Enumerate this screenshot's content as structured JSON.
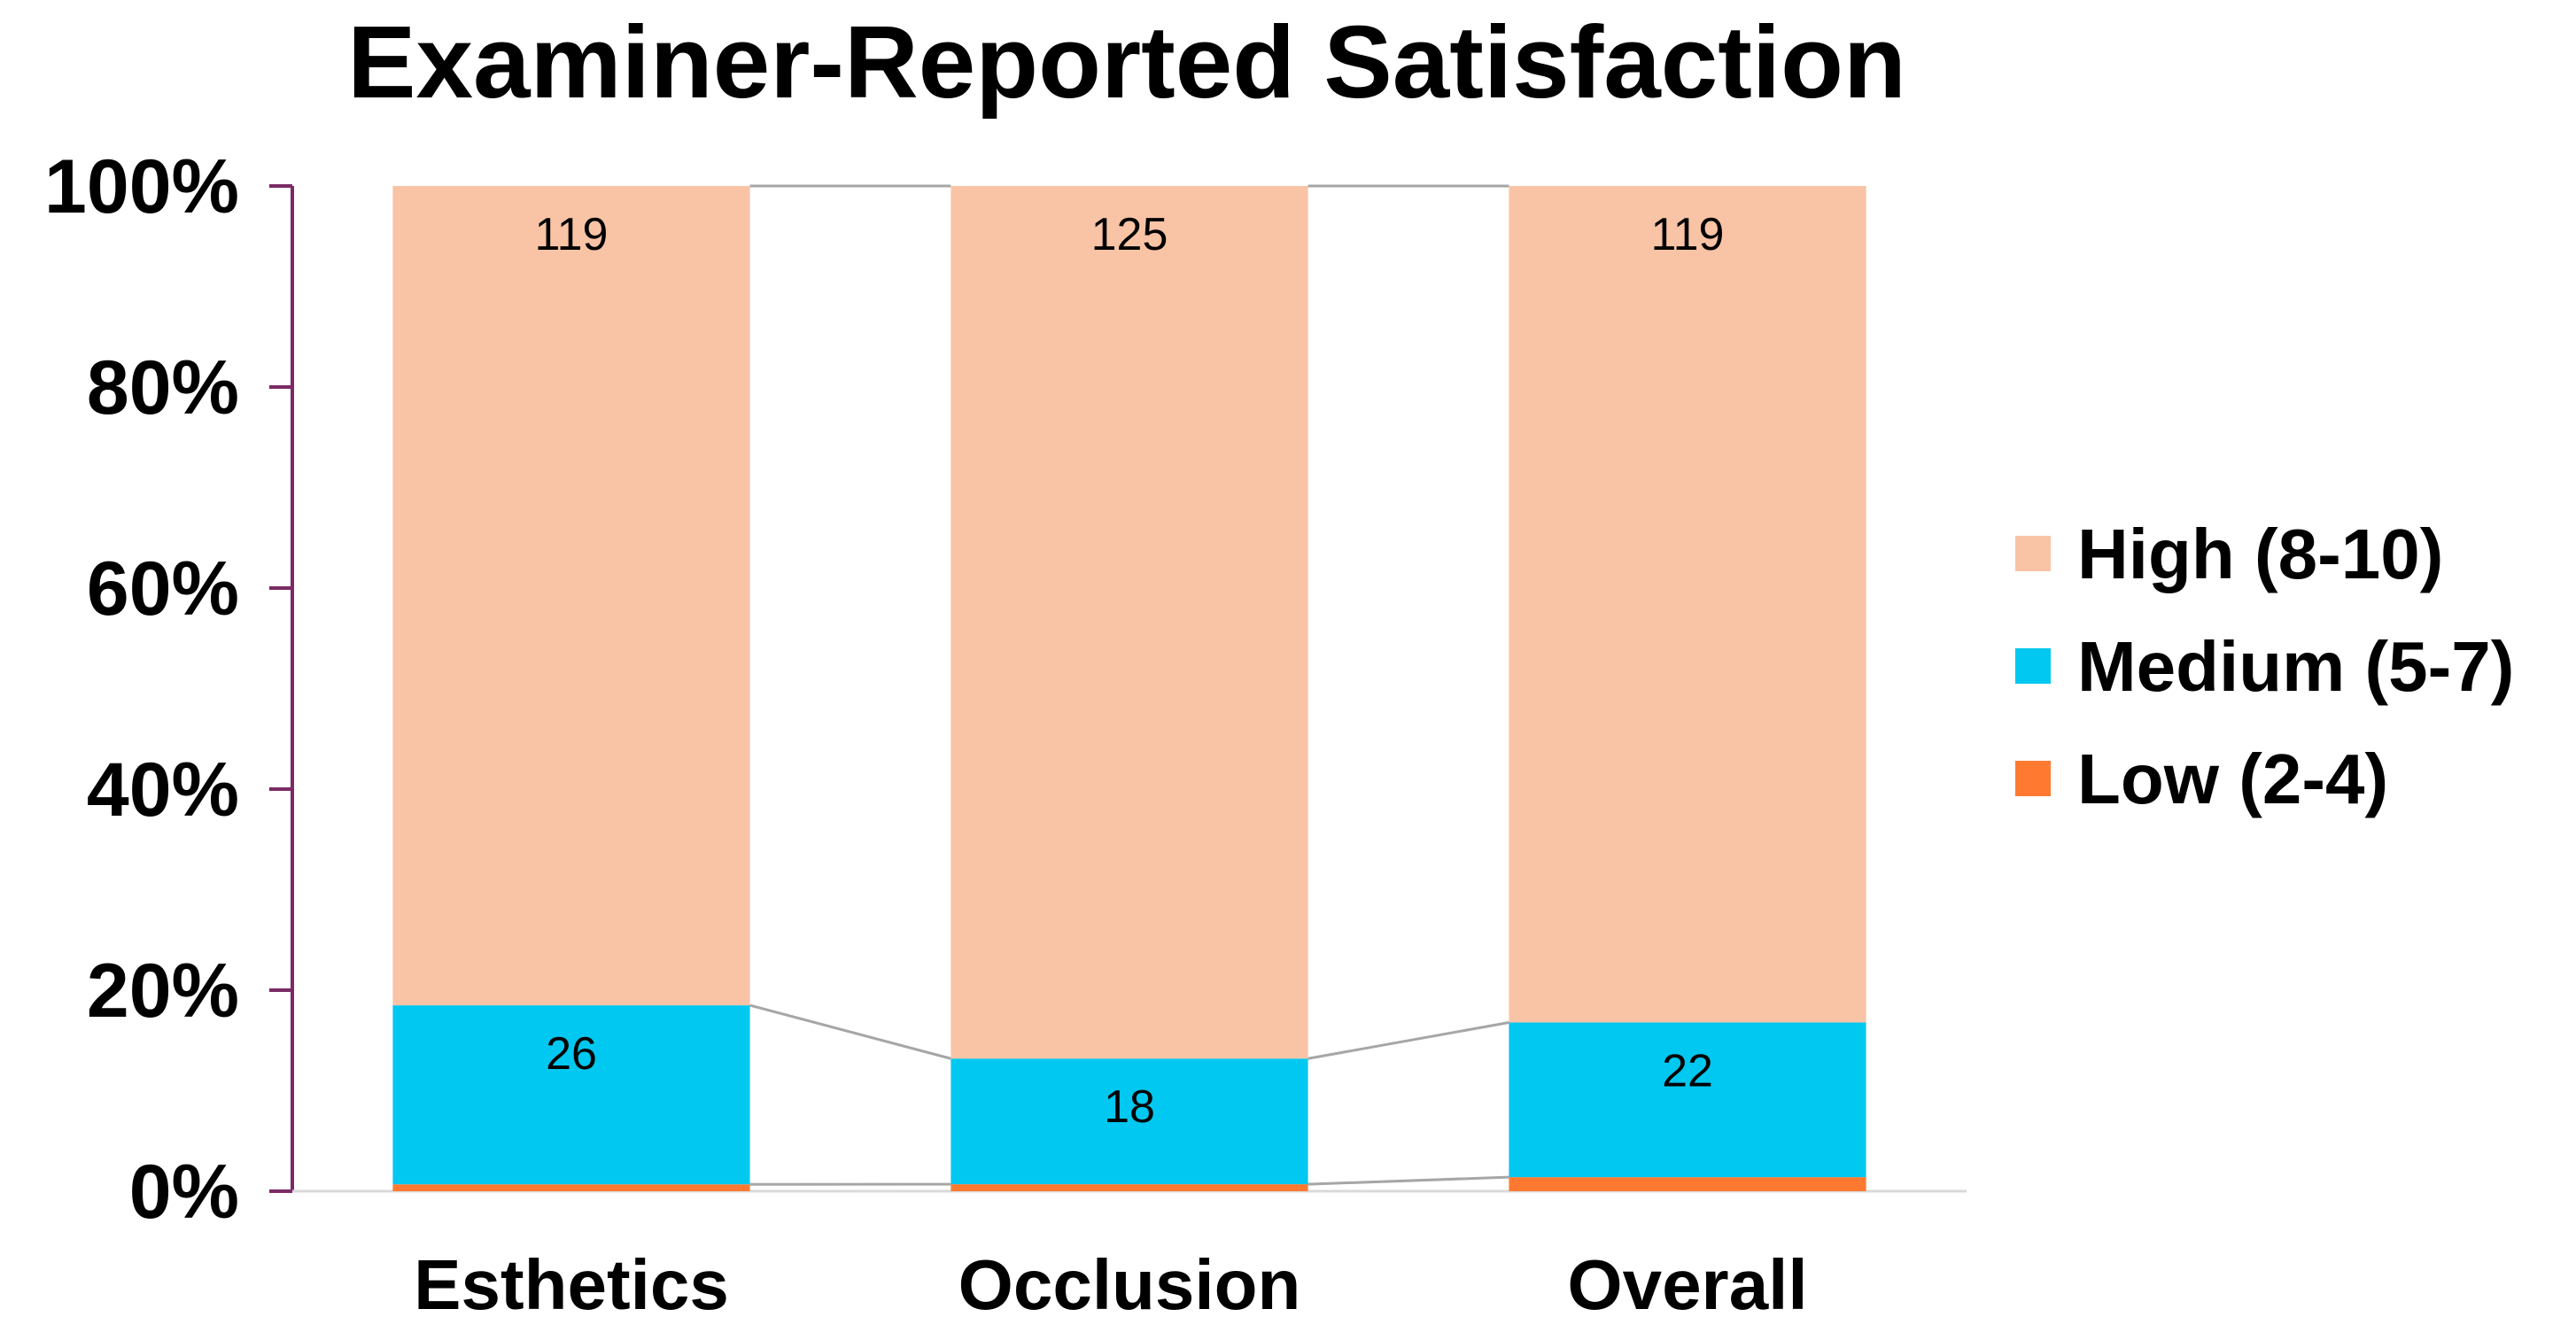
{
  "chart_data": {
    "type": "bar",
    "stacked": true,
    "normalized": true,
    "title": "Examiner-Reported Satisfaction",
    "categories": [
      "Esthetics",
      "Occlusion",
      "Overall"
    ],
    "series": [
      {
        "name": "Low (2-4)",
        "values": [
          1,
          1,
          2
        ],
        "color": "#FF7A30",
        "show_labels": false
      },
      {
        "name": "Medium (5-7)",
        "values": [
          26,
          18,
          22
        ],
        "color": "#00C8F0",
        "show_labels": true
      },
      {
        "name": "High (8-10)",
        "values": [
          119,
          125,
          119
        ],
        "color": "#F9C3A6",
        "show_labels": true
      }
    ],
    "legend_order": [
      "High (8-10)",
      "Medium (5-7)",
      "Low (2-4)"
    ],
    "legend_position": "right",
    "ylim": [
      0,
      100
    ],
    "yticks": [
      0,
      20,
      40,
      60,
      80,
      100
    ],
    "ytick_labels": [
      "0%",
      "20%",
      "40%",
      "60%",
      "80%",
      "100%"
    ],
    "series_lines": true,
    "axis_color": "#7A2B66",
    "line_color": "#A6A6A6"
  }
}
